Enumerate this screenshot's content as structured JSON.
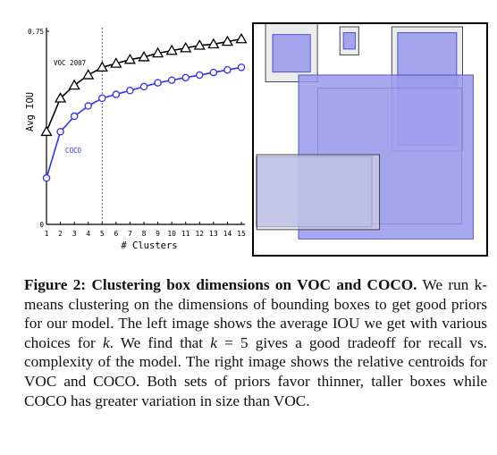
{
  "chart_data": [
    {
      "type": "line",
      "title": "",
      "xlabel": "# Clusters",
      "ylabel": "Avg IOU",
      "x": [
        1,
        2,
        3,
        4,
        5,
        6,
        7,
        8,
        9,
        10,
        11,
        12,
        13,
        14,
        15
      ],
      "xlim": [
        1,
        15
      ],
      "ylim": [
        0,
        0.75
      ],
      "ytick_labels": [
        "0",
        "0.75"
      ],
      "xtick_labels": [
        "1",
        "2",
        "3",
        "4",
        "5",
        "6",
        "7",
        "8",
        "9",
        "10",
        "11",
        "12",
        "13",
        "14",
        "15"
      ],
      "vline_x": 5,
      "series": [
        {
          "name": "VOC 2007",
          "color": "#000000",
          "marker": "triangle",
          "values": [
            0.36,
            0.49,
            0.54,
            0.58,
            0.61,
            0.625,
            0.64,
            0.65,
            0.665,
            0.675,
            0.685,
            0.695,
            0.7,
            0.71,
            0.72
          ]
        },
        {
          "name": "COCO",
          "color": "#3333ee",
          "marker": "circle",
          "values": [
            0.18,
            0.36,
            0.42,
            0.46,
            0.49,
            0.505,
            0.52,
            0.535,
            0.55,
            0.56,
            0.57,
            0.58,
            0.59,
            0.6,
            0.61
          ]
        }
      ]
    },
    {
      "type": "other",
      "description_kind": "relative-centroid-boxes",
      "frame_color": "#000000",
      "voc_color": "#dddddd",
      "coco_color": "#9999ee",
      "boxes": [
        {
          "dataset": "VOC",
          "cx": 0.167,
          "cy": 0.129,
          "w": 0.22,
          "h": 0.25
        },
        {
          "dataset": "COCO",
          "cx": 0.167,
          "cy": 0.132,
          "w": 0.16,
          "h": 0.16
        },
        {
          "dataset": "VOC",
          "cx": 0.412,
          "cy": 0.079,
          "w": 0.08,
          "h": 0.12
        },
        {
          "dataset": "COCO",
          "cx": 0.412,
          "cy": 0.079,
          "w": 0.05,
          "h": 0.07
        },
        {
          "dataset": "VOC",
          "cx": 0.742,
          "cy": 0.284,
          "w": 0.3,
          "h": 0.53
        },
        {
          "dataset": "COCO",
          "cx": 0.742,
          "cy": 0.284,
          "w": 0.25,
          "h": 0.48
        },
        {
          "dataset": "VOC",
          "cx": 0.583,
          "cy": 0.571,
          "w": 0.61,
          "h": 0.58
        },
        {
          "dataset": "COCO",
          "cx": 0.567,
          "cy": 0.575,
          "w": 0.74,
          "h": 0.7
        },
        {
          "dataset": "COCO",
          "cx": 0.263,
          "cy": 0.723,
          "w": 0.49,
          "h": 0.3
        },
        {
          "dataset": "VOC",
          "cx": 0.28,
          "cy": 0.725,
          "w": 0.52,
          "h": 0.32
        }
      ]
    }
  ],
  "caption": {
    "label": "Figure 2:",
    "title": "Clustering box dimensions on VOC and COCO.",
    "body_1": "We run k-means clustering on the dimensions of bounding boxes to get good priors for our model. The left image shows the average IOU we get with various choices for ",
    "k1": "k",
    "body_2": ". We find that ",
    "k2": "k",
    "eq": " = 5",
    "body_3": " gives a good tradeoff for recall vs. complexity of the model. The right image shows the relative centroids for VOC and COCO. Both sets of priors favor thinner, taller boxes while COCO has greater variation in size than VOC."
  }
}
